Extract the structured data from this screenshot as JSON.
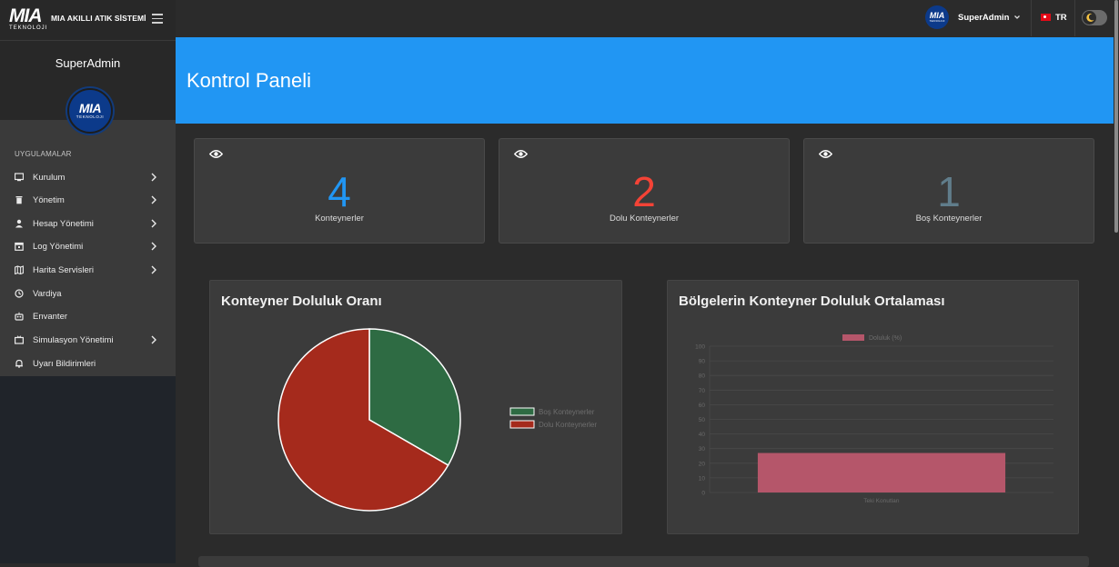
{
  "brand": {
    "logo_text": "MIA",
    "logo_sub": "TEKNOLOJI",
    "title": "MIA AKILLI ATIK SİSTEMİ"
  },
  "sidebar": {
    "user_name": "SuperAdmin",
    "section_header": "UYGULAMALAR",
    "items": [
      {
        "label": "Kurulum",
        "icon": "monitor-icon",
        "has_submenu": true
      },
      {
        "label": "Yönetim",
        "icon": "trash-icon",
        "has_submenu": true
      },
      {
        "label": "Hesap Yönetimi",
        "icon": "user-icon",
        "has_submenu": true
      },
      {
        "label": "Log Yönetimi",
        "icon": "calendar-icon",
        "has_submenu": true
      },
      {
        "label": "Harita Servisleri",
        "icon": "map-icon",
        "has_submenu": true
      },
      {
        "label": "Vardiya",
        "icon": "clock-icon",
        "has_submenu": false
      },
      {
        "label": "Envanter",
        "icon": "robot-icon",
        "has_submenu": false
      },
      {
        "label": "Simulasyon Yönetimi",
        "icon": "tv-icon",
        "has_submenu": true
      },
      {
        "label": "Uyarı Bildirimleri",
        "icon": "bell-icon",
        "has_submenu": false
      }
    ]
  },
  "topbar": {
    "user_name": "SuperAdmin",
    "language": "TR"
  },
  "page": {
    "title": "Kontrol Paneli"
  },
  "stats": [
    {
      "value": "4",
      "label": "Konteynerler",
      "color": "#2196f3"
    },
    {
      "value": "2",
      "label": "Dolu Konteynerler",
      "color": "#f44336"
    },
    {
      "value": "1",
      "label": "Boş Konteynerler",
      "color": "#607d8b"
    }
  ],
  "charts": {
    "pie_title": "Konteyner Doluluk Oranı",
    "bar_title": "Bölgelerin Konteyner Doluluk Ortalaması"
  },
  "chart_data": [
    {
      "type": "pie",
      "labels": [
        "Boş Konteynerler",
        "Dolu Konteynerler"
      ],
      "values": [
        1,
        2
      ],
      "colors": [
        "#2e6b43",
        "#a52a1c"
      ],
      "legend": "right"
    },
    {
      "type": "bar",
      "categories": [
        "Teki Konutları"
      ],
      "series": [
        {
          "name": "Doluluk (%)",
          "values": [
            27
          ],
          "color": "#b5566a"
        }
      ],
      "ylim": [
        0,
        100
      ],
      "yticks": [
        0,
        10,
        20,
        30,
        40,
        50,
        60,
        70,
        80,
        90,
        100
      ],
      "legend": "top"
    }
  ]
}
